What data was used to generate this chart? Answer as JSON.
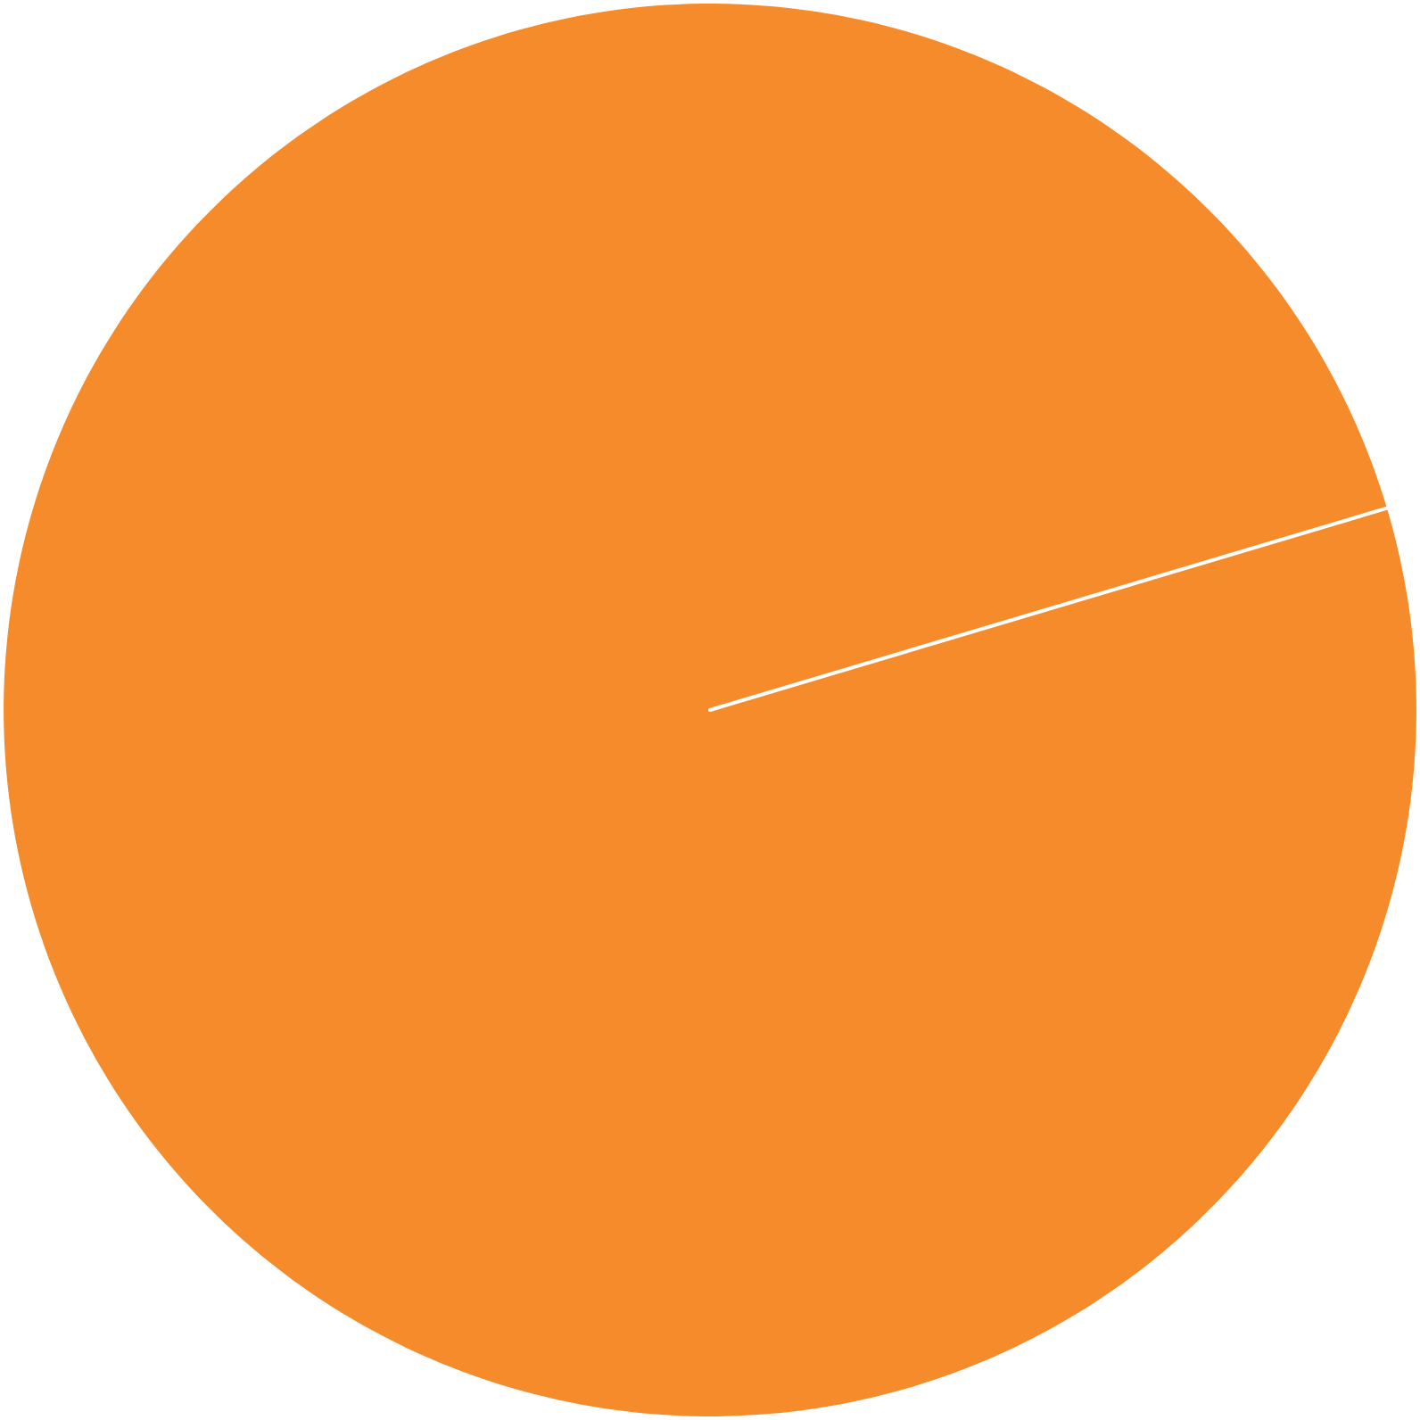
{
  "chart_data": {
    "type": "pie",
    "categories": [
      null
    ],
    "values": [
      100
    ],
    "colors": [
      "#f58b2a"
    ]
  }
}
